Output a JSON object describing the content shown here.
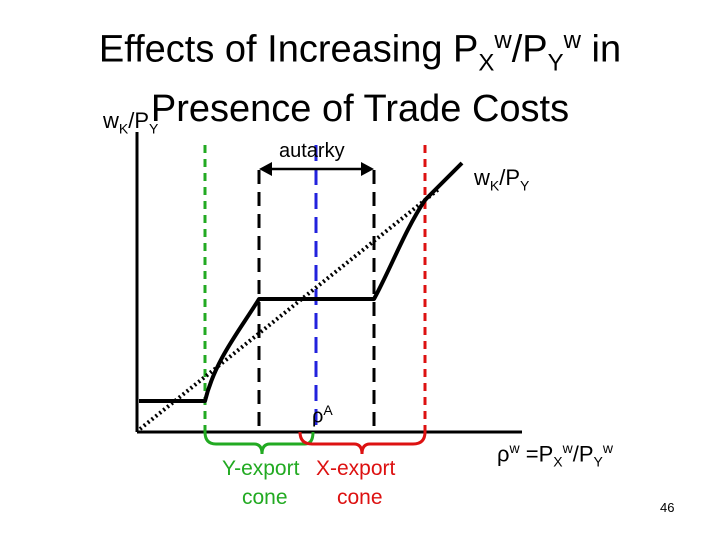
{
  "title": {
    "part1": "Effects of Increasing P",
    "sub_x": "X",
    "sup_w1": "w",
    "slash": "/P",
    "sub_y": "Y",
    "sup_w2": "w",
    "part2": " in",
    "line2": "Presence of Trade Costs"
  },
  "y_axis_label": {
    "w": "w",
    "sub_k": "K",
    "slash_p": "/P",
    "sub_y": "Y"
  },
  "right_label": {
    "w": "w",
    "sub_k": "K",
    "slash_p": "/P",
    "sub_y": "Y"
  },
  "autarky_label": "autarky",
  "rho_a": {
    "rho": "ρ",
    "sup": "A"
  },
  "x_axis_label": {
    "rho": "ρ",
    "sup_w": "w",
    "eq": " =P",
    "sub_x": "X",
    "sup_w2": "w",
    "slash": "/P",
    "sub_y": "Y",
    "sup_w3": "w"
  },
  "cone_labels": {
    "y_export": "Y-export",
    "x_export": "X-export",
    "cone1": "cone",
    "cone2": "cone"
  },
  "page_number": "46",
  "colors": {
    "green": "#22aa22",
    "red": "#dd1111",
    "blue": "#2222dd",
    "black": "#000000"
  }
}
